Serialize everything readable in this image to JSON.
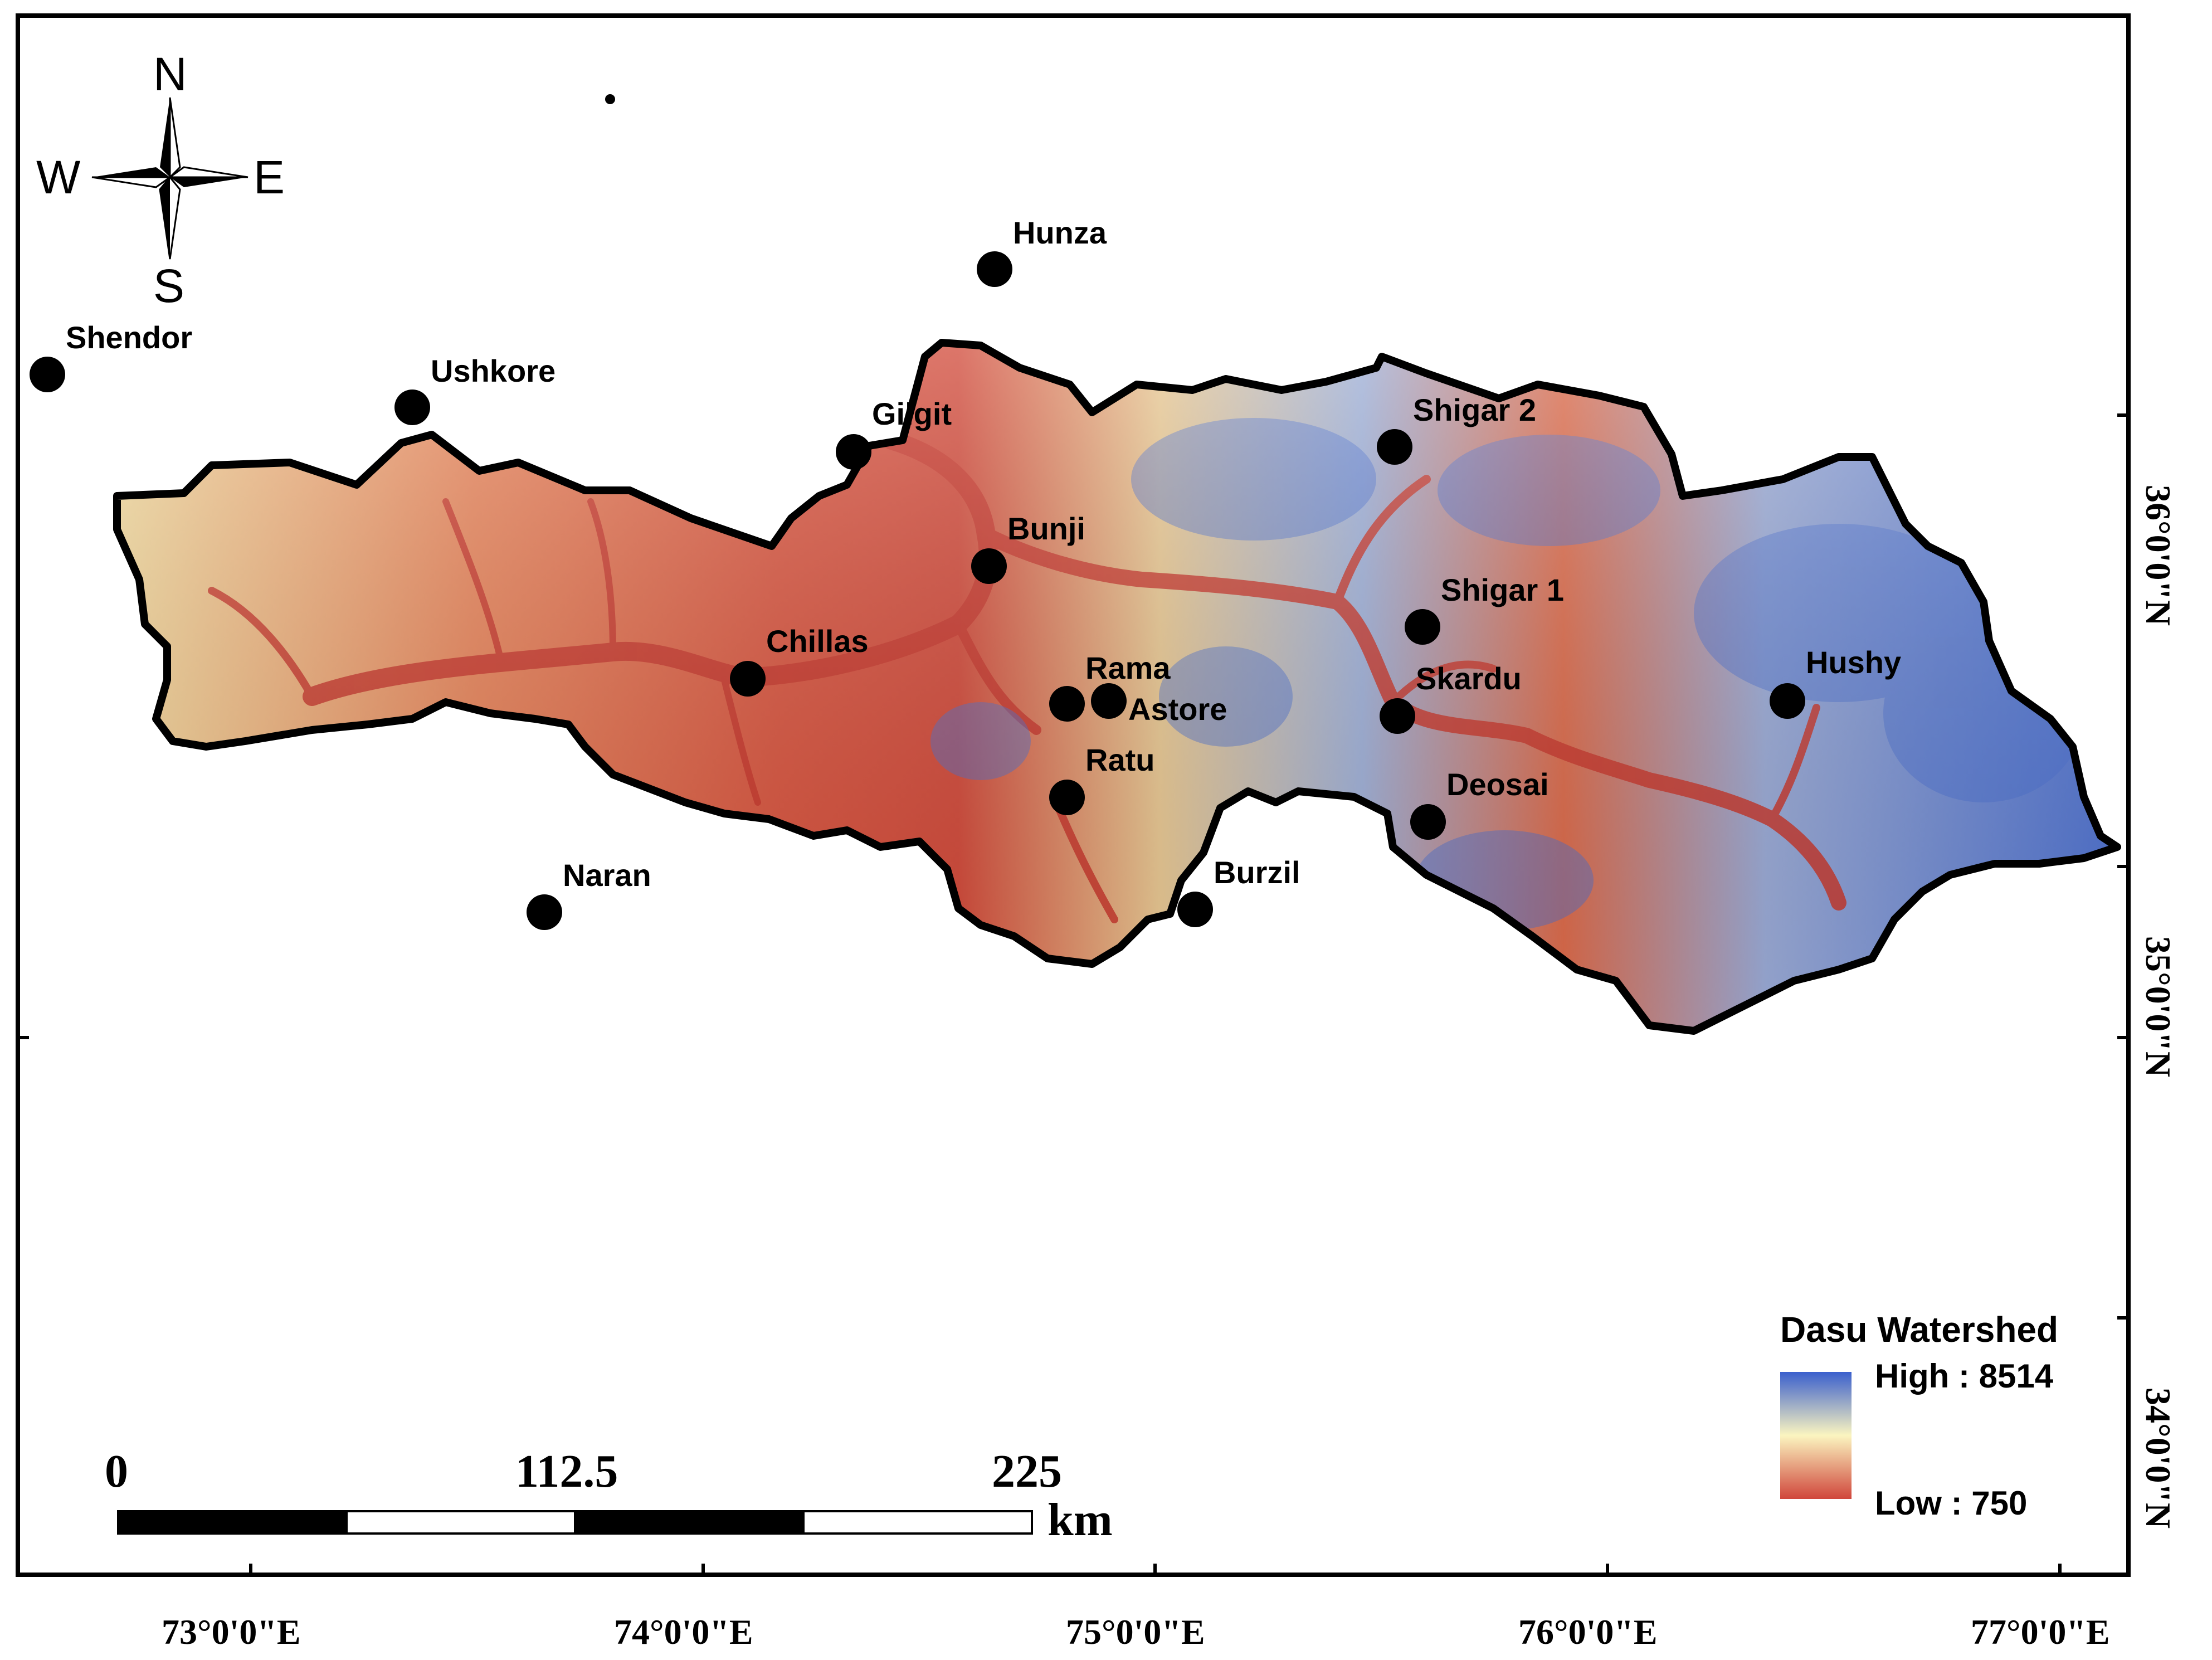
{
  "stations": [
    {
      "id": "shendor",
      "name": "Shendor"
    },
    {
      "id": "ushkore",
      "name": "Ushkore"
    },
    {
      "id": "hunza",
      "name": "Hunza"
    },
    {
      "id": "gilgit",
      "name": "Gilgit"
    },
    {
      "id": "bunji",
      "name": "Bunji"
    },
    {
      "id": "chillas",
      "name": "Chillas"
    },
    {
      "id": "rama",
      "name": "Rama"
    },
    {
      "id": "astore",
      "name": "Astore"
    },
    {
      "id": "ratu",
      "name": "Ratu"
    },
    {
      "id": "naran",
      "name": "Naran"
    },
    {
      "id": "burzil",
      "name": "Burzil"
    },
    {
      "id": "shigar2",
      "name": "Shigar 2"
    },
    {
      "id": "shigar1",
      "name": "Shigar 1"
    },
    {
      "id": "skardu",
      "name": "Skardu"
    },
    {
      "id": "deosai",
      "name": "Deosai"
    },
    {
      "id": "hushy",
      "name": "Hushy"
    }
  ],
  "longitude_ticks": [
    "73°0'0\"E",
    "74°0'0\"E",
    "75°0'0\"E",
    "76°0'0\"E",
    "77°0'0\"E"
  ],
  "latitude_ticks": [
    "36°0'0\"N",
    "35°0'0\"N",
    "34°0'0\"N"
  ],
  "compass": {
    "n": "N",
    "s": "S",
    "e": "E",
    "w": "W"
  },
  "scale_bar": {
    "labels": [
      "0",
      "112.5",
      "225"
    ],
    "unit": "km"
  },
  "legend": {
    "title": "Dasu Watershed",
    "high_label": "High : 8514",
    "low_label": "Low : 750",
    "colors": {
      "high": "#3a5fcd",
      "mid": "#fbf5c0",
      "low": "#d0463b"
    }
  }
}
